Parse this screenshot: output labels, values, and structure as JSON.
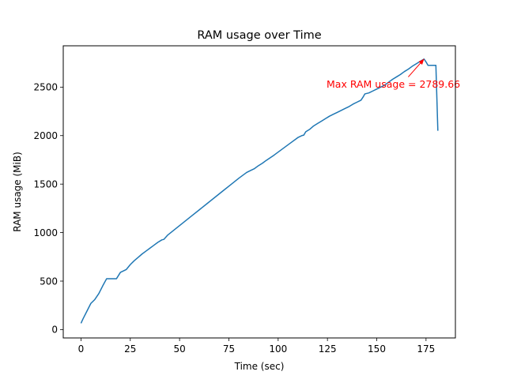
{
  "chart_data": {
    "type": "line",
    "title": "RAM usage over Time",
    "xlabel": "Time (sec)",
    "ylabel": "RAM usage (MiB)",
    "xlim": [
      -9,
      189.9
    ],
    "ylim": [
      -86,
      2926
    ],
    "xticks": [
      0,
      25,
      50,
      75,
      100,
      125,
      150,
      175
    ],
    "yticks": [
      0,
      500,
      1000,
      1500,
      2000,
      2500
    ],
    "grid": false,
    "line_color": "#1f77b4",
    "annotation": {
      "text": "Max RAM usage = 2789.66",
      "color": "#ff0000",
      "point": [
        174,
        2789.66
      ],
      "text_anchor": [
        166,
        2605
      ]
    },
    "series": [
      {
        "x": [
          0,
          1,
          3,
          5,
          7,
          9,
          11,
          13,
          15,
          17,
          18,
          20,
          23,
          25,
          27,
          29,
          31,
          33,
          35,
          37,
          39,
          41,
          42,
          44,
          48,
          52,
          56,
          60,
          64,
          68,
          72,
          76,
          80,
          84,
          86,
          88,
          90,
          92,
          94,
          98,
          102,
          106,
          110,
          112,
          113,
          114,
          116,
          118,
          120,
          122,
          124,
          126,
          128,
          130,
          132,
          134,
          136,
          138,
          140,
          142,
          143,
          144,
          146,
          148,
          150,
          152,
          154,
          156,
          158,
          160,
          162,
          164,
          166,
          168,
          170,
          172,
          174,
          175,
          176,
          177,
          178,
          179,
          180,
          181
        ],
        "y": [
          65,
          110,
          190,
          270,
          310,
          370,
          450,
          525,
          525,
          525,
          525,
          590,
          620,
          670,
          710,
          745,
          780,
          810,
          840,
          870,
          900,
          925,
          930,
          975,
          1040,
          1105,
          1170,
          1235,
          1300,
          1365,
          1430,
          1495,
          1560,
          1620,
          1640,
          1660,
          1690,
          1715,
          1745,
          1800,
          1860,
          1920,
          1980,
          2000,
          2005,
          2040,
          2065,
          2100,
          2125,
          2150,
          2175,
          2200,
          2220,
          2240,
          2260,
          2280,
          2300,
          2325,
          2345,
          2365,
          2395,
          2430,
          2440,
          2460,
          2480,
          2500,
          2520,
          2550,
          2580,
          2605,
          2630,
          2660,
          2685,
          2715,
          2740,
          2765,
          2789.66,
          2760,
          2725,
          2725,
          2725,
          2725,
          2725,
          2050
        ]
      }
    ]
  }
}
